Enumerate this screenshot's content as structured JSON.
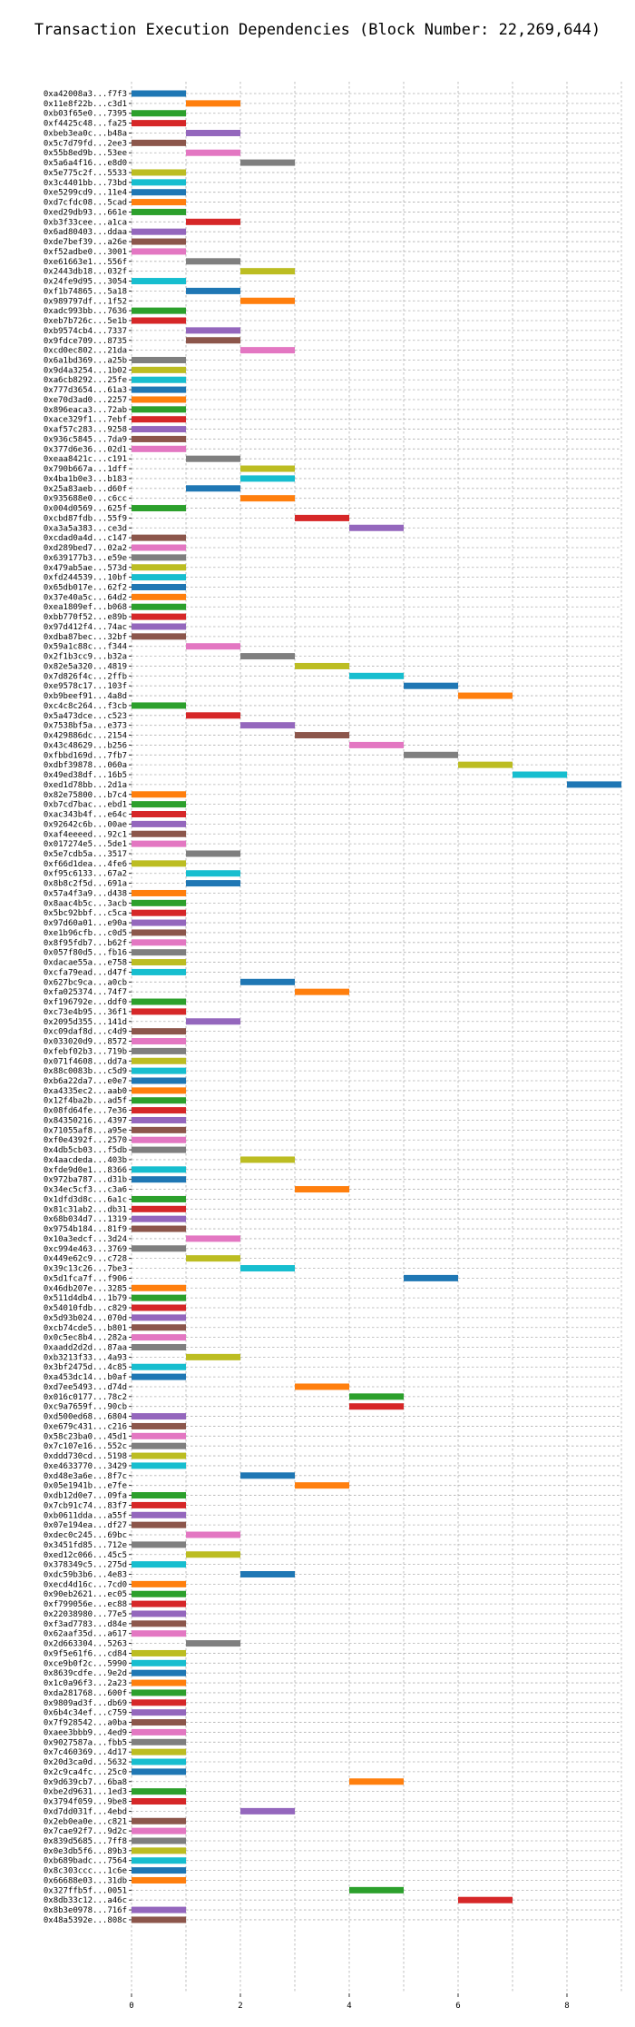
{
  "chart_data": {
    "type": "gantt",
    "title": "Transaction Execution Dependencies (Block Number: 22,269,644)",
    "xlabel": "",
    "ylabel": "",
    "xlim": [
      0,
      9
    ],
    "xticks": [
      0,
      2,
      4,
      6,
      8
    ],
    "grid": true,
    "palette": [
      "#1f77b4",
      "#ff7f0e",
      "#2ca02c",
      "#d62728",
      "#9467bd",
      "#8c564b",
      "#e377c2",
      "#7f7f7f",
      "#bcbd22",
      "#17becf"
    ],
    "tasks": [
      {
        "tx": "0xa42008a3...f7f3",
        "start": 0,
        "end": 1
      },
      {
        "tx": "0x11e8f22b...c3d1",
        "start": 1,
        "end": 2
      },
      {
        "tx": "0xb03f65e0...7395",
        "start": 0,
        "end": 1
      },
      {
        "tx": "0xf4425c48...fa25",
        "start": 0,
        "end": 1
      },
      {
        "tx": "0xbeb3ea0c...b48a",
        "start": 1,
        "end": 2
      },
      {
        "tx": "0x5c7d79fd...2ee3",
        "start": 0,
        "end": 1
      },
      {
        "tx": "0x55b8ed9b...53ee",
        "start": 1,
        "end": 2
      },
      {
        "tx": "0x5a6a4f16...e8d0",
        "start": 2,
        "end": 3
      },
      {
        "tx": "0x5e775c2f...5533",
        "start": 0,
        "end": 1
      },
      {
        "tx": "0x3c4401bb...73bd",
        "start": 0,
        "end": 1
      },
      {
        "tx": "0xe5299cd9...11e4",
        "start": 0,
        "end": 1
      },
      {
        "tx": "0xd7cfdc08...5cad",
        "start": 0,
        "end": 1
      },
      {
        "tx": "0xed29db93...661e",
        "start": 0,
        "end": 1
      },
      {
        "tx": "0xb3f33cee...a1ca",
        "start": 1,
        "end": 2
      },
      {
        "tx": "0x6ad80403...ddaa",
        "start": 0,
        "end": 1
      },
      {
        "tx": "0xde7bef39...a26e",
        "start": 0,
        "end": 1
      },
      {
        "tx": "0xf52adbe0...3001",
        "start": 0,
        "end": 1
      },
      {
        "tx": "0xe61663e1...556f",
        "start": 1,
        "end": 2
      },
      {
        "tx": "0x2443db18...032f",
        "start": 2,
        "end": 3
      },
      {
        "tx": "0x24fe9d95...3054",
        "start": 0,
        "end": 1
      },
      {
        "tx": "0xf1b74865...5a18",
        "start": 1,
        "end": 2
      },
      {
        "tx": "0x989797df...1f52",
        "start": 2,
        "end": 3
      },
      {
        "tx": "0xadc993bb...7636",
        "start": 0,
        "end": 1
      },
      {
        "tx": "0xeb7b726c...5e1b",
        "start": 0,
        "end": 1
      },
      {
        "tx": "0xb9574cb4...7337",
        "start": 1,
        "end": 2
      },
      {
        "tx": "0x9fdce709...8735",
        "start": 1,
        "end": 2
      },
      {
        "tx": "0xcd0ec802...21da",
        "start": 2,
        "end": 3
      },
      {
        "tx": "0x6a1bd369...a25b",
        "start": 0,
        "end": 1
      },
      {
        "tx": "0x9d4a3254...1b02",
        "start": 0,
        "end": 1
      },
      {
        "tx": "0xa6cb8292...25fe",
        "start": 0,
        "end": 1
      },
      {
        "tx": "0x777d3654...61a3",
        "start": 0,
        "end": 1
      },
      {
        "tx": "0xe70d3ad0...2257",
        "start": 0,
        "end": 1
      },
      {
        "tx": "0x896eaca3...72ab",
        "start": 0,
        "end": 1
      },
      {
        "tx": "0xace329f1...7ebf",
        "start": 0,
        "end": 1
      },
      {
        "tx": "0xaf57c283...9258",
        "start": 0,
        "end": 1
      },
      {
        "tx": "0x936c5845...7da9",
        "start": 0,
        "end": 1
      },
      {
        "tx": "0x377d6e36...02d1",
        "start": 0,
        "end": 1
      },
      {
        "tx": "0xeaa8421c...c191",
        "start": 1,
        "end": 2
      },
      {
        "tx": "0x790b667a...1dff",
        "start": 2,
        "end": 3
      },
      {
        "tx": "0x4ba1b0e3...b183",
        "start": 2,
        "end": 3
      },
      {
        "tx": "0x25a83aeb...d60f",
        "start": 1,
        "end": 2
      },
      {
        "tx": "0x935688e0...c6cc",
        "start": 2,
        "end": 3
      },
      {
        "tx": "0x004d0569...625f",
        "start": 0,
        "end": 1
      },
      {
        "tx": "0xcbd87fdb...55f9",
        "start": 3,
        "end": 4
      },
      {
        "tx": "0xa3a5a383...ce3d",
        "start": 4,
        "end": 5
      },
      {
        "tx": "0xcdad0a4d...c147",
        "start": 0,
        "end": 1
      },
      {
        "tx": "0xd289bed7...02a2",
        "start": 0,
        "end": 1
      },
      {
        "tx": "0x639177b3...e59e",
        "start": 0,
        "end": 1
      },
      {
        "tx": "0x479ab5ae...573d",
        "start": 0,
        "end": 1
      },
      {
        "tx": "0xfd244539...10bf",
        "start": 0,
        "end": 1
      },
      {
        "tx": "0x65db017e...62f2",
        "start": 0,
        "end": 1
      },
      {
        "tx": "0x37e40a5c...64d2",
        "start": 0,
        "end": 1
      },
      {
        "tx": "0xea1809ef...b068",
        "start": 0,
        "end": 1
      },
      {
        "tx": "0xbb770f52...e89b",
        "start": 0,
        "end": 1
      },
      {
        "tx": "0x97d412f4...74ac",
        "start": 0,
        "end": 1
      },
      {
        "tx": "0xdba87bec...32bf",
        "start": 0,
        "end": 1
      },
      {
        "tx": "0x59a1c88c...f344",
        "start": 1,
        "end": 2
      },
      {
        "tx": "0x2f1b3cc9...b32a",
        "start": 2,
        "end": 3
      },
      {
        "tx": "0x82e5a320...4819",
        "start": 3,
        "end": 4
      },
      {
        "tx": "0x7d826f4c...2ffb",
        "start": 4,
        "end": 5
      },
      {
        "tx": "0xe9578c17...103f",
        "start": 5,
        "end": 6
      },
      {
        "tx": "0xb9beef91...4a8d",
        "start": 6,
        "end": 7
      },
      {
        "tx": "0xc4c8c264...f3cb",
        "start": 0,
        "end": 1
      },
      {
        "tx": "0x5a473dce...c523",
        "start": 1,
        "end": 2
      },
      {
        "tx": "0x7538bf5a...e373",
        "start": 2,
        "end": 3
      },
      {
        "tx": "0x429886dc...2154",
        "start": 3,
        "end": 4
      },
      {
        "tx": "0x43c48629...b256",
        "start": 4,
        "end": 5
      },
      {
        "tx": "0xfbbd169d...7fb7",
        "start": 5,
        "end": 6
      },
      {
        "tx": "0xdbf39878...060a",
        "start": 6,
        "end": 7
      },
      {
        "tx": "0x49ed38df...16b5",
        "start": 7,
        "end": 8
      },
      {
        "tx": "0xed1d78bb...2d1a",
        "start": 8,
        "end": 9
      },
      {
        "tx": "0x82e75800...b7c4",
        "start": 0,
        "end": 1
      },
      {
        "tx": "0xb7cd7bac...ebd1",
        "start": 0,
        "end": 1
      },
      {
        "tx": "0xac343b4f...e64c",
        "start": 0,
        "end": 1
      },
      {
        "tx": "0x92642c6b...00ae",
        "start": 0,
        "end": 1
      },
      {
        "tx": "0xaf4eeeed...92c1",
        "start": 0,
        "end": 1
      },
      {
        "tx": "0x017274e5...5de1",
        "start": 0,
        "end": 1
      },
      {
        "tx": "0x5e7cdb5a...3517",
        "start": 1,
        "end": 2
      },
      {
        "tx": "0xf66d1dea...4fe6",
        "start": 0,
        "end": 1
      },
      {
        "tx": "0xf95c6133...67a2",
        "start": 1,
        "end": 2
      },
      {
        "tx": "0x8b8c2f5d...691a",
        "start": 1,
        "end": 2
      },
      {
        "tx": "0x57a4f3a9...d438",
        "start": 0,
        "end": 1
      },
      {
        "tx": "0x8aac4b5c...3acb",
        "start": 0,
        "end": 1
      },
      {
        "tx": "0x5bc92bbf...c5ca",
        "start": 0,
        "end": 1
      },
      {
        "tx": "0x97d60a01...e90a",
        "start": 0,
        "end": 1
      },
      {
        "tx": "0xe1b96cfb...c0d5",
        "start": 0,
        "end": 1
      },
      {
        "tx": "0x8f95fdb7...b62f",
        "start": 0,
        "end": 1
      },
      {
        "tx": "0x057f80d5...fb16",
        "start": 0,
        "end": 1
      },
      {
        "tx": "0xdacae55a...e758",
        "start": 0,
        "end": 1
      },
      {
        "tx": "0xcfa79ead...d47f",
        "start": 0,
        "end": 1
      },
      {
        "tx": "0x627bc9ca...a0cb",
        "start": 2,
        "end": 3
      },
      {
        "tx": "0xfa025374...74f7",
        "start": 3,
        "end": 4
      },
      {
        "tx": "0xf196792e...ddf0",
        "start": 0,
        "end": 1
      },
      {
        "tx": "0xc73e4b95...36f1",
        "start": 0,
        "end": 1
      },
      {
        "tx": "0x2095d355...141d",
        "start": 1,
        "end": 2
      },
      {
        "tx": "0xc09daf8d...c4d9",
        "start": 0,
        "end": 1
      },
      {
        "tx": "0x033020d9...8572",
        "start": 0,
        "end": 1
      },
      {
        "tx": "0xfebf02b3...719b",
        "start": 0,
        "end": 1
      },
      {
        "tx": "0x071f4608...dd7a",
        "start": 0,
        "end": 1
      },
      {
        "tx": "0x88c0083b...c5d9",
        "start": 0,
        "end": 1
      },
      {
        "tx": "0xb6a22da7...e0e7",
        "start": 0,
        "end": 1
      },
      {
        "tx": "0xa4335ec2...aab0",
        "start": 0,
        "end": 1
      },
      {
        "tx": "0x12f4ba2b...ad5f",
        "start": 0,
        "end": 1
      },
      {
        "tx": "0x08fd64fe...7e36",
        "start": 0,
        "end": 1
      },
      {
        "tx": "0x84350216...4397",
        "start": 0,
        "end": 1
      },
      {
        "tx": "0x71055af8...a95e",
        "start": 0,
        "end": 1
      },
      {
        "tx": "0xf0e4392f...2570",
        "start": 0,
        "end": 1
      },
      {
        "tx": "0x4db5cb03...f5db",
        "start": 0,
        "end": 1
      },
      {
        "tx": "0x4aacdeda...403b",
        "start": 2,
        "end": 3
      },
      {
        "tx": "0xfde9d0e1...8366",
        "start": 0,
        "end": 1
      },
      {
        "tx": "0x972ba787...d31b",
        "start": 0,
        "end": 1
      },
      {
        "tx": "0x34ec5cf3...c3a6",
        "start": 3,
        "end": 4
      },
      {
        "tx": "0x1dfd3d8c...6a1c",
        "start": 0,
        "end": 1
      },
      {
        "tx": "0x81c31ab2...db31",
        "start": 0,
        "end": 1
      },
      {
        "tx": "0x68b034d7...1319",
        "start": 0,
        "end": 1
      },
      {
        "tx": "0x9754b184...81f9",
        "start": 0,
        "end": 1
      },
      {
        "tx": "0x10a3edcf...3d24",
        "start": 1,
        "end": 2
      },
      {
        "tx": "0xc994e463...3769",
        "start": 0,
        "end": 1
      },
      {
        "tx": "0x449e62c9...c728",
        "start": 1,
        "end": 2
      },
      {
        "tx": "0x39c13c26...7be3",
        "start": 2,
        "end": 3
      },
      {
        "tx": "0x5d1fca7f...f906",
        "start": 5,
        "end": 6
      },
      {
        "tx": "0x46db207e...3285",
        "start": 0,
        "end": 1
      },
      {
        "tx": "0x511d4db4...1b79",
        "start": 0,
        "end": 1
      },
      {
        "tx": "0x54010fdb...c829",
        "start": 0,
        "end": 1
      },
      {
        "tx": "0x5d93b024...070d",
        "start": 0,
        "end": 1
      },
      {
        "tx": "0xcb74cde5...b801",
        "start": 0,
        "end": 1
      },
      {
        "tx": "0x0c5ec8b4...282a",
        "start": 0,
        "end": 1
      },
      {
        "tx": "0xaadd2d2d...87aa",
        "start": 0,
        "end": 1
      },
      {
        "tx": "0xb3213f33...4a93",
        "start": 1,
        "end": 2
      },
      {
        "tx": "0x3bf2475d...4c85",
        "start": 0,
        "end": 1
      },
      {
        "tx": "0xa453dc14...b0af",
        "start": 0,
        "end": 1
      },
      {
        "tx": "0xd7ee5493...d74d",
        "start": 3,
        "end": 4
      },
      {
        "tx": "0x016c0177...78c2",
        "start": 4,
        "end": 5
      },
      {
        "tx": "0xc9a7659f...90cb",
        "start": 4,
        "end": 5
      },
      {
        "tx": "0xd500ed68...6804",
        "start": 0,
        "end": 1
      },
      {
        "tx": "0xe679c431...c216",
        "start": 0,
        "end": 1
      },
      {
        "tx": "0x58c23ba0...45d1",
        "start": 0,
        "end": 1
      },
      {
        "tx": "0x7c107e16...552c",
        "start": 0,
        "end": 1
      },
      {
        "tx": "0xddd730cd...5198",
        "start": 0,
        "end": 1
      },
      {
        "tx": "0xe4633770...3429",
        "start": 0,
        "end": 1
      },
      {
        "tx": "0xd48e3a6e...8f7c",
        "start": 2,
        "end": 3
      },
      {
        "tx": "0x05e1941b...e7fe",
        "start": 3,
        "end": 4
      },
      {
        "tx": "0xdb12d0e7...09fa",
        "start": 0,
        "end": 1
      },
      {
        "tx": "0x7cb91c74...83f7",
        "start": 0,
        "end": 1
      },
      {
        "tx": "0xb0611dda...a55f",
        "start": 0,
        "end": 1
      },
      {
        "tx": "0x07e194ea...df27",
        "start": 0,
        "end": 1
      },
      {
        "tx": "0xdec0c245...69bc",
        "start": 1,
        "end": 2
      },
      {
        "tx": "0x3451fd85...712e",
        "start": 0,
        "end": 1
      },
      {
        "tx": "0xed12c066...45c5",
        "start": 1,
        "end": 2
      },
      {
        "tx": "0x378349c5...275d",
        "start": 0,
        "end": 1
      },
      {
        "tx": "0xdc59b3b6...4e83",
        "start": 2,
        "end": 3
      },
      {
        "tx": "0xecd4d16c...7cd0",
        "start": 0,
        "end": 1
      },
      {
        "tx": "0x90eb2621...ec05",
        "start": 0,
        "end": 1
      },
      {
        "tx": "0xf799056e...ec88",
        "start": 0,
        "end": 1
      },
      {
        "tx": "0x22038980...77e5",
        "start": 0,
        "end": 1
      },
      {
        "tx": "0xf3ad7783...d84e",
        "start": 0,
        "end": 1
      },
      {
        "tx": "0x62aaf35d...a617",
        "start": 0,
        "end": 1
      },
      {
        "tx": "0x2d663304...5263",
        "start": 1,
        "end": 2
      },
      {
        "tx": "0x9f5e61f6...cd84",
        "start": 0,
        "end": 1
      },
      {
        "tx": "0xce9b0f2c...5990",
        "start": 0,
        "end": 1
      },
      {
        "tx": "0x8639cdfe...9e2d",
        "start": 0,
        "end": 1
      },
      {
        "tx": "0x1c0a96f3...2a23",
        "start": 0,
        "end": 1
      },
      {
        "tx": "0xda281768...600f",
        "start": 0,
        "end": 1
      },
      {
        "tx": "0x9809ad3f...db69",
        "start": 0,
        "end": 1
      },
      {
        "tx": "0x6b4c34ef...c759",
        "start": 0,
        "end": 1
      },
      {
        "tx": "0x7f928542...a0ba",
        "start": 0,
        "end": 1
      },
      {
        "tx": "0xaee3bbb9...4ed9",
        "start": 0,
        "end": 1
      },
      {
        "tx": "0x9027587a...fbb5",
        "start": 0,
        "end": 1
      },
      {
        "tx": "0x7c460369...4d17",
        "start": 0,
        "end": 1
      },
      {
        "tx": "0x20d3ca0d...5632",
        "start": 0,
        "end": 1
      },
      {
        "tx": "0x2c9ca4fc...25c0",
        "start": 0,
        "end": 1
      },
      {
        "tx": "0x9d639cb7...6ba8",
        "start": 4,
        "end": 5
      },
      {
        "tx": "0xbe2d9631...1ed3",
        "start": 0,
        "end": 1
      },
      {
        "tx": "0x3794f059...9be8",
        "start": 0,
        "end": 1
      },
      {
        "tx": "0xd7dd031f...4ebd",
        "start": 2,
        "end": 3
      },
      {
        "tx": "0x2eb0ea0e...c821",
        "start": 0,
        "end": 1
      },
      {
        "tx": "0x7cae92f7...9d2c",
        "start": 0,
        "end": 1
      },
      {
        "tx": "0x839d5685...7ff8",
        "start": 0,
        "end": 1
      },
      {
        "tx": "0x0e3db5f6...89b3",
        "start": 0,
        "end": 1
      },
      {
        "tx": "0xb689badc...7564",
        "start": 0,
        "end": 1
      },
      {
        "tx": "0x8c303ccc...1c6e",
        "start": 0,
        "end": 1
      },
      {
        "tx": "0x66688e03...31db",
        "start": 0,
        "end": 1
      },
      {
        "tx": "0x327ffb5f...0051",
        "start": 4,
        "end": 5
      },
      {
        "tx": "0x8db33c12...a46c",
        "start": 6,
        "end": 7
      },
      {
        "tx": "0x8b3e0978...716f",
        "start": 0,
        "end": 1
      },
      {
        "tx": "0x48a5392e...808c",
        "start": 0,
        "end": 1
      }
    ]
  }
}
